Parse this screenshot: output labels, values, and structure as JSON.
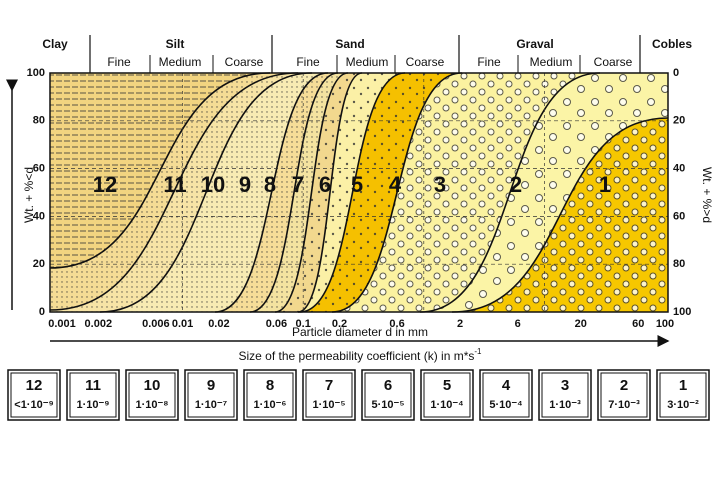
{
  "header": {
    "fractions": [
      "Clay",
      "Silt",
      "Sand",
      "Graval",
      "Cobles"
    ],
    "subfractions": [
      "Fine",
      "Medium",
      "Coarse",
      "Fine",
      "Medium",
      "Coarse",
      "Fine",
      "Medium",
      "Coarse"
    ]
  },
  "left_axis": {
    "label": "Wt. + %<d",
    "ticks": [
      "100",
      "80",
      "60",
      "40",
      "20",
      "0"
    ]
  },
  "right_axis": {
    "label": "Wt. + %>d",
    "ticks": [
      "0",
      "20",
      "40",
      "60",
      "80",
      "100"
    ]
  },
  "x_axis": {
    "label": "Particle diameter d in mm",
    "ticks": [
      "0.001",
      "0.002",
      "0.006",
      "0.01",
      "0.02",
      "0.06",
      "0.1",
      "0.2",
      "0.6",
      "2",
      "6",
      "20",
      "60",
      "100"
    ]
  },
  "zones": [
    "12",
    "11",
    "10",
    "9",
    "8",
    "7",
    "6",
    "5",
    "4",
    "3",
    "2",
    "1"
  ],
  "permeability": {
    "title": "Size of the permeability coefficient (k) in m*s",
    "title_sup": "-1",
    "boxes": [
      {
        "zone": "12",
        "k": "<1·10⁻⁹"
      },
      {
        "zone": "11",
        "k": "1·10⁻⁹"
      },
      {
        "zone": "10",
        "k": "1·10⁻⁸"
      },
      {
        "zone": "9",
        "k": "1·10⁻⁷"
      },
      {
        "zone": "8",
        "k": "1·10⁻⁶"
      },
      {
        "zone": "7",
        "k": "1·10⁻⁵"
      },
      {
        "zone": "6",
        "k": "5·10⁻⁵"
      },
      {
        "zone": "5",
        "k": "1·10⁻⁴"
      },
      {
        "zone": "4",
        "k": "5·10⁻⁴"
      },
      {
        "zone": "3",
        "k": "1·10⁻³"
      },
      {
        "zone": "2",
        "k": "7·10⁻³"
      },
      {
        "zone": "1",
        "k": "3·10⁻²"
      }
    ]
  }
}
